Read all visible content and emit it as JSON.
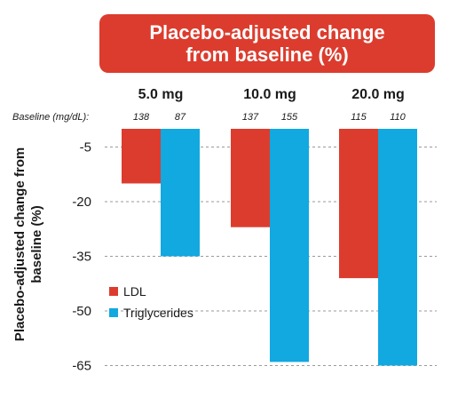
{
  "title": {
    "line1": "Placebo-adjusted change",
    "line2": "from baseline (%)"
  },
  "chart_data": {
    "type": "bar",
    "title": "Placebo-adjusted change from baseline (%)",
    "categories": [
      "5.0 mg",
      "10.0 mg",
      "20.0 mg"
    ],
    "series": [
      {
        "name": "LDL",
        "color": "#dc3c2e",
        "values": [
          -15,
          -27,
          -41
        ],
        "baselines": [
          "138",
          "137",
          "115"
        ]
      },
      {
        "name": "Triglycerides",
        "color": "#12a8e0",
        "values": [
          -35,
          -64,
          -65
        ],
        "baselines": [
          "87",
          "155",
          "110"
        ]
      }
    ],
    "baseline_label": "Baseline (mg/dL):",
    "ylabel": "Placebo-adjusted change from baseline (%)",
    "yticks": [
      -5,
      -20,
      -35,
      -50,
      -65
    ],
    "ylim": [
      0,
      -65
    ],
    "grid": "dashed horizontal",
    "legend_position": "bottom-left"
  }
}
